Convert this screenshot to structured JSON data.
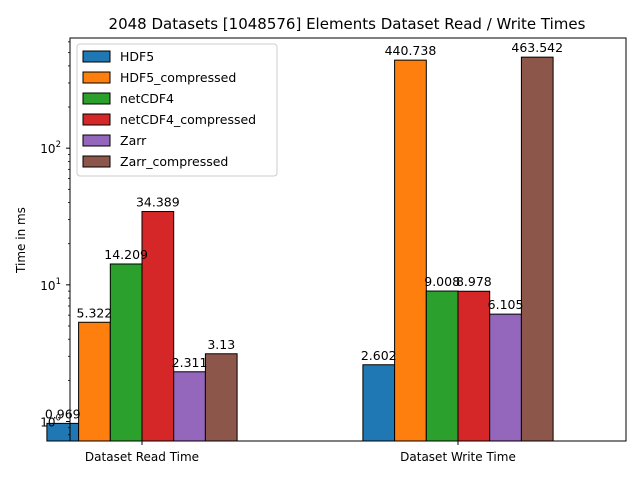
{
  "chart_data": {
    "type": "bar",
    "title": "2048 Datasets [1048576] Elements Dataset Read / Write Times",
    "xlabel": "",
    "ylabel": "Time in ms",
    "yscale": "log",
    "ylim": [
      0.72,
      640
    ],
    "yticks": [
      {
        "value": 1,
        "base": "10",
        "exp": "0"
      },
      {
        "value": 10,
        "base": "10",
        "exp": "1"
      },
      {
        "value": 100,
        "base": "10",
        "exp": "2"
      }
    ],
    "categories": [
      "Dataset Read Time",
      "Dataset Write Time"
    ],
    "series": [
      {
        "name": "HDF5",
        "color": "#1f77b4",
        "values": [
          0.969,
          2.602
        ],
        "labels": [
          "0.969",
          "2.602"
        ]
      },
      {
        "name": "HDF5_compressed",
        "color": "#ff7f0e",
        "values": [
          5.322,
          440.738
        ],
        "labels": [
          "5.322",
          "440.738"
        ]
      },
      {
        "name": "netCDF4",
        "color": "#2ca02c",
        "values": [
          14.209,
          9.008
        ],
        "labels": [
          "14.209",
          "9.008"
        ]
      },
      {
        "name": "netCDF4_compressed",
        "color": "#d62728",
        "values": [
          34.389,
          8.978
        ],
        "labels": [
          "34.389",
          "8.978"
        ]
      },
      {
        "name": "Zarr",
        "color": "#9467bd",
        "values": [
          2.311,
          6.105
        ],
        "labels": [
          "2.311",
          "6.105"
        ]
      },
      {
        "name": "Zarr_compressed",
        "color": "#8c564b",
        "values": [
          3.13,
          463.542
        ],
        "labels": [
          "3.13",
          "463.542"
        ]
      }
    ],
    "legend": {
      "position": "top-left"
    },
    "grid": false
  }
}
